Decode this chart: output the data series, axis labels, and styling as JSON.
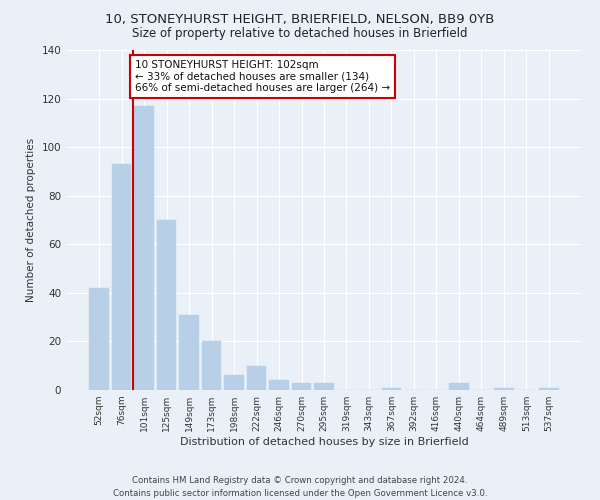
{
  "title": "10, STONEYHURST HEIGHT, BRIERFIELD, NELSON, BB9 0YB",
  "subtitle": "Size of property relative to detached houses in Brierfield",
  "xlabel": "Distribution of detached houses by size in Brierfield",
  "ylabel": "Number of detached properties",
  "categories": [
    "52sqm",
    "76sqm",
    "101sqm",
    "125sqm",
    "149sqm",
    "173sqm",
    "198sqm",
    "222sqm",
    "246sqm",
    "270sqm",
    "295sqm",
    "319sqm",
    "343sqm",
    "367sqm",
    "392sqm",
    "416sqm",
    "440sqm",
    "464sqm",
    "489sqm",
    "513sqm",
    "537sqm"
  ],
  "values": [
    42,
    93,
    117,
    70,
    31,
    20,
    6,
    10,
    4,
    3,
    3,
    0,
    0,
    1,
    0,
    0,
    3,
    0,
    1,
    0,
    1
  ],
  "bar_color": "#b8cfe8",
  "bar_edge_color": "#b8cfe8",
  "highlight_color": "#cc0000",
  "annotation_text": "10 STONEYHURST HEIGHT: 102sqm\n← 33% of detached houses are smaller (134)\n66% of semi-detached houses are larger (264) →",
  "annotation_box_color": "#ffffff",
  "annotation_box_edge_color": "#cc0000",
  "ylim": [
    0,
    140
  ],
  "yticks": [
    0,
    20,
    40,
    60,
    80,
    100,
    120,
    140
  ],
  "background_color": "#eaf0f8",
  "grid_color": "#ffffff",
  "footer": "Contains HM Land Registry data © Crown copyright and database right 2024.\nContains public sector information licensed under the Open Government Licence v3.0."
}
